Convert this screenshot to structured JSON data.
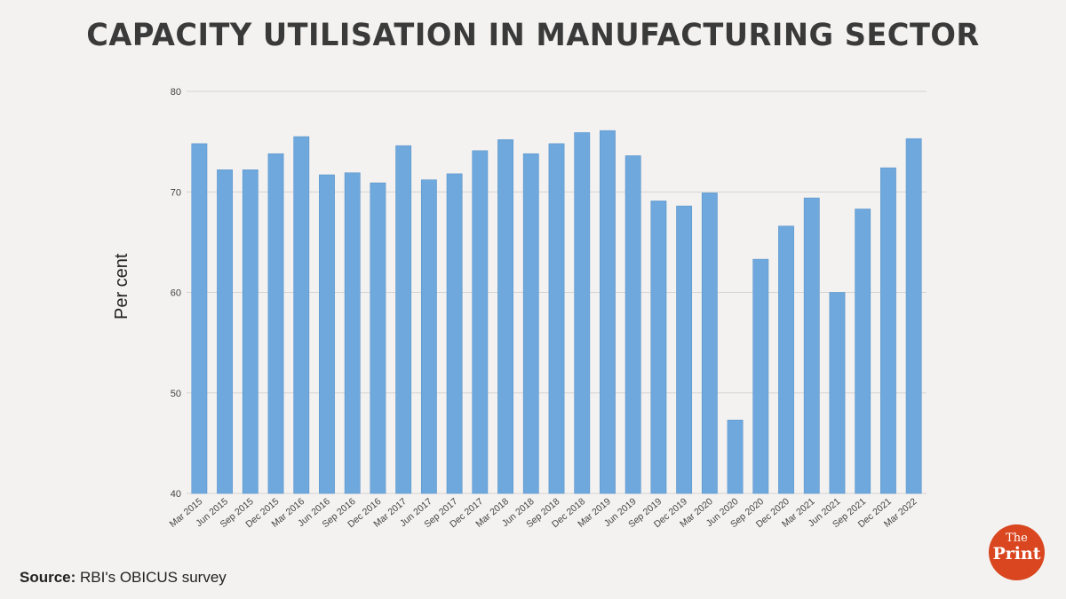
{
  "chart_data": {
    "type": "bar",
    "title": "CAPACITY UTILISATION IN MANUFACTURING SECTOR",
    "xlabel": "",
    "ylabel": "Per cent",
    "ylim": [
      40,
      80
    ],
    "yticks": [
      40,
      50,
      60,
      70,
      80
    ],
    "categories": [
      "Mar 2015",
      "Jun 2015",
      "Sep 2015",
      "Dec 2015",
      "Mar 2016",
      "Jun 2016",
      "Sep 2016",
      "Dec 2016",
      "Mar 2017",
      "Jun 2017",
      "Sep 2017",
      "Dec 2017",
      "Mar 2018",
      "Jun 2018",
      "Sep 2018",
      "Dec 2018",
      "Mar 2019",
      "Jun 2019",
      "Sep 2019",
      "Dec 2019",
      "Mar 2020",
      "Jun 2020",
      "Sep 2020",
      "Dec 2020",
      "Mar 2021",
      "Jun 2021",
      "Sep 2021",
      "Dec 2021",
      "Mar 2022"
    ],
    "values": [
      74.8,
      72.2,
      72.2,
      73.8,
      75.5,
      71.7,
      71.9,
      70.9,
      74.6,
      71.2,
      71.8,
      74.1,
      75.2,
      73.8,
      74.8,
      75.9,
      76.1,
      73.6,
      69.1,
      68.6,
      69.9,
      47.3,
      63.3,
      66.6,
      69.4,
      60.0,
      68.3,
      72.4,
      75.3
    ],
    "grid": true,
    "bar_color": "#6fa8dc"
  },
  "source": {
    "label": "Source:",
    "text": " RBI's OBICUS survey"
  },
  "logo": {
    "the": "The",
    "print": "Print",
    "color": "#d9461f"
  }
}
